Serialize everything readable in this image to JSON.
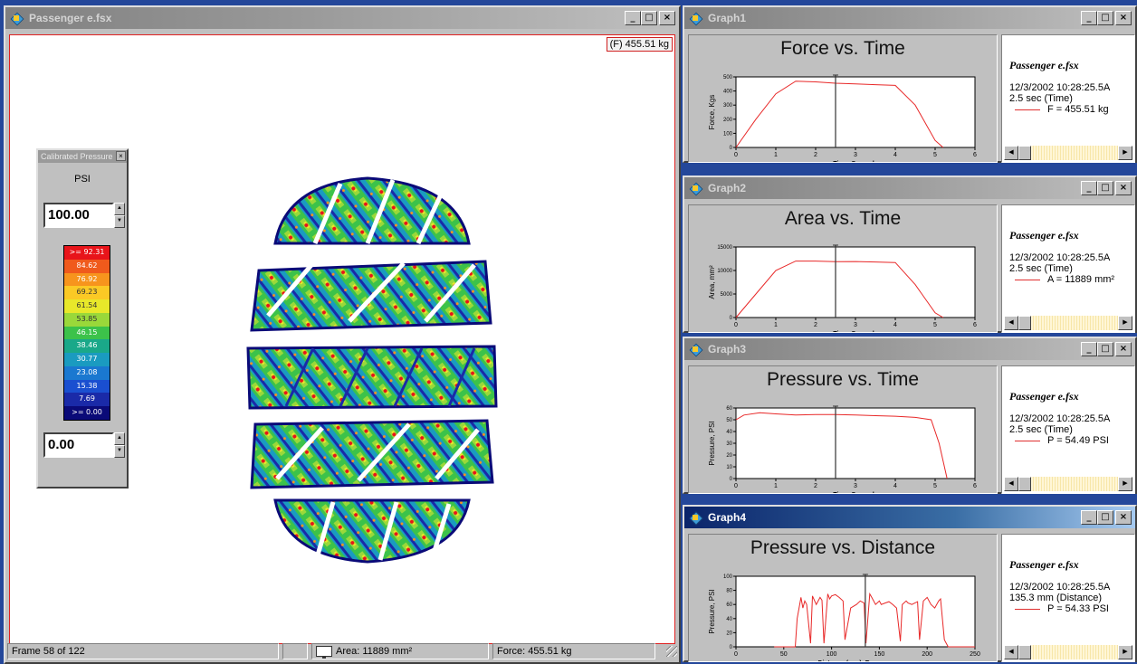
{
  "main_window": {
    "title": "Passenger e.fsx",
    "force_readout": "(F) 455.51 kg",
    "status": {
      "frame": "Frame 58 of 122",
      "area": "Area: 11889 mm²",
      "force": "Force: 455.51 kg"
    }
  },
  "palette": {
    "title": "Calibrated Pressure",
    "unit": "PSI",
    "max_value": "100.00",
    "min_value": "0.00",
    "levels": [
      {
        "label": ">= 92.31",
        "color": "#e8141a"
      },
      {
        "label": "84.62",
        "color": "#f05a1c"
      },
      {
        "label": "76.92",
        "color": "#f7941d"
      },
      {
        "label": "69.23",
        "color": "#fbc925"
      },
      {
        "label": "61.54",
        "color": "#e8e82a"
      },
      {
        "label": "53.85",
        "color": "#9ad83a"
      },
      {
        "label": "46.15",
        "color": "#3cc24a"
      },
      {
        "label": "38.46",
        "color": "#1aa889"
      },
      {
        "label": "30.77",
        "color": "#1a9bc0"
      },
      {
        "label": "23.08",
        "color": "#1a78d0"
      },
      {
        "label": "15.38",
        "color": "#1a4fd0"
      },
      {
        "label": "7.69",
        "color": "#1a2aa8"
      },
      {
        "label": ">= 0.00",
        "color": "#0a0a78"
      }
    ]
  },
  "graphs": [
    {
      "window_title": "Graph1",
      "plot_title": "Force vs. Time",
      "ylabel": "Force, Kgs",
      "xlabel": "Time, Seconds",
      "filename": "Passenger e.fsx",
      "timestamp": "12/3/2002 10:28:25.5A",
      "cursor_readout": "2.5 sec (Time)",
      "legend": "F = 455.51 kg",
      "active": false
    },
    {
      "window_title": "Graph2",
      "plot_title": "Area vs. Time",
      "ylabel": "Area, mm²",
      "xlabel": "Time, Seconds",
      "filename": "Passenger e.fsx",
      "timestamp": "12/3/2002 10:28:25.5A",
      "cursor_readout": "2.5 sec (Time)",
      "legend": "A = 11889 mm²",
      "active": false
    },
    {
      "window_title": "Graph3",
      "plot_title": "Pressure vs. Time",
      "ylabel": "Pressure, PSI",
      "xlabel": "Time, Seconds",
      "filename": "Passenger e.fsx",
      "timestamp": "12/3/2002 10:28:25.5A",
      "cursor_readout": "2.5 sec (Time)",
      "legend": "P = 54.49 PSI",
      "active": false
    },
    {
      "window_title": "Graph4",
      "plot_title": "Pressure vs. Distance",
      "ylabel": "Pressure, PSI",
      "xlabel": "Distance (mm), Row, mm",
      "filename": "Passenger e.fsx",
      "timestamp": "12/3/2002 10:28:25.5A",
      "cursor_readout": "135.3 mm (Distance)",
      "legend": "P = 54.33 PSI",
      "active": true
    }
  ],
  "chart_data": [
    {
      "type": "line",
      "title": "Force vs. Time",
      "xlabel": "Time, Seconds",
      "ylabel": "Force, Kgs",
      "xlim": [
        0,
        6
      ],
      "ylim": [
        0,
        500
      ],
      "xticks": [
        0,
        1,
        2,
        3,
        4,
        5,
        6
      ],
      "yticks": [
        0,
        100,
        200,
        300,
        400,
        500
      ],
      "cursor_x": 2.5,
      "series": [
        {
          "name": "F",
          "x": [
            0,
            0.5,
            1,
            1.5,
            2,
            2.5,
            3,
            3.5,
            4,
            4.5,
            5,
            5.2
          ],
          "y": [
            0,
            200,
            380,
            470,
            465,
            455,
            450,
            445,
            440,
            300,
            50,
            0
          ]
        }
      ]
    },
    {
      "type": "line",
      "title": "Area vs. Time",
      "xlabel": "Time, Seconds",
      "ylabel": "Area, mm²",
      "xlim": [
        0,
        6
      ],
      "ylim": [
        0,
        15000
      ],
      "xticks": [
        0,
        1,
        2,
        3,
        4,
        5,
        6
      ],
      "yticks": [
        0,
        5000,
        10000,
        15000
      ],
      "cursor_x": 2.5,
      "series": [
        {
          "name": "A",
          "x": [
            0,
            0.5,
            1,
            1.5,
            2,
            2.5,
            3,
            3.5,
            4,
            4.5,
            5,
            5.2
          ],
          "y": [
            0,
            5000,
            10000,
            12000,
            12000,
            11889,
            11900,
            11800,
            11700,
            7000,
            1000,
            0
          ]
        }
      ]
    },
    {
      "type": "line",
      "title": "Pressure vs. Time",
      "xlabel": "Time, Seconds",
      "ylabel": "Pressure, PSI",
      "xlim": [
        0,
        6
      ],
      "ylim": [
        0,
        60
      ],
      "xticks": [
        0,
        1,
        2,
        3,
        4,
        5,
        6
      ],
      "yticks": [
        0,
        10,
        20,
        30,
        40,
        50,
        60
      ],
      "cursor_x": 2.5,
      "series": [
        {
          "name": "P",
          "x": [
            0,
            0.2,
            0.6,
            1,
            1.5,
            2,
            2.5,
            3,
            3.5,
            4,
            4.5,
            4.9,
            5.1,
            5.3
          ],
          "y": [
            50,
            54,
            56,
            55,
            54,
            54.5,
            54.5,
            54,
            53.5,
            53,
            52,
            50,
            30,
            0
          ]
        }
      ]
    },
    {
      "type": "line",
      "title": "Pressure vs. Distance",
      "xlabel": "Distance (mm), Row, mm",
      "ylabel": "Pressure, PSI",
      "xlim": [
        0,
        250
      ],
      "ylim": [
        0,
        100
      ],
      "xticks": [
        0,
        50,
        100,
        150,
        200,
        250
      ],
      "yticks": [
        0,
        20,
        40,
        60,
        80,
        100
      ],
      "cursor_x": 135.3,
      "series": [
        {
          "name": "P",
          "x": [
            40,
            62,
            64,
            68,
            70,
            72,
            74,
            78,
            80,
            84,
            88,
            90,
            92,
            96,
            98,
            100,
            104,
            108,
            112,
            114,
            120,
            126,
            130,
            134,
            136,
            140,
            142,
            146,
            150,
            152,
            156,
            160,
            164,
            168,
            172,
            174,
            178,
            180,
            184,
            190,
            192,
            196,
            200,
            204,
            208,
            212,
            214,
            218,
            222,
            250
          ],
          "y": [
            0,
            0,
            40,
            70,
            55,
            65,
            60,
            5,
            72,
            60,
            70,
            66,
            5,
            75,
            68,
            72,
            74,
            70,
            65,
            10,
            55,
            60,
            65,
            62,
            5,
            75,
            70,
            60,
            65,
            60,
            62,
            64,
            60,
            55,
            8,
            60,
            65,
            62,
            60,
            64,
            10,
            65,
            70,
            60,
            55,
            65,
            68,
            10,
            0,
            0
          ]
        }
      ]
    }
  ]
}
